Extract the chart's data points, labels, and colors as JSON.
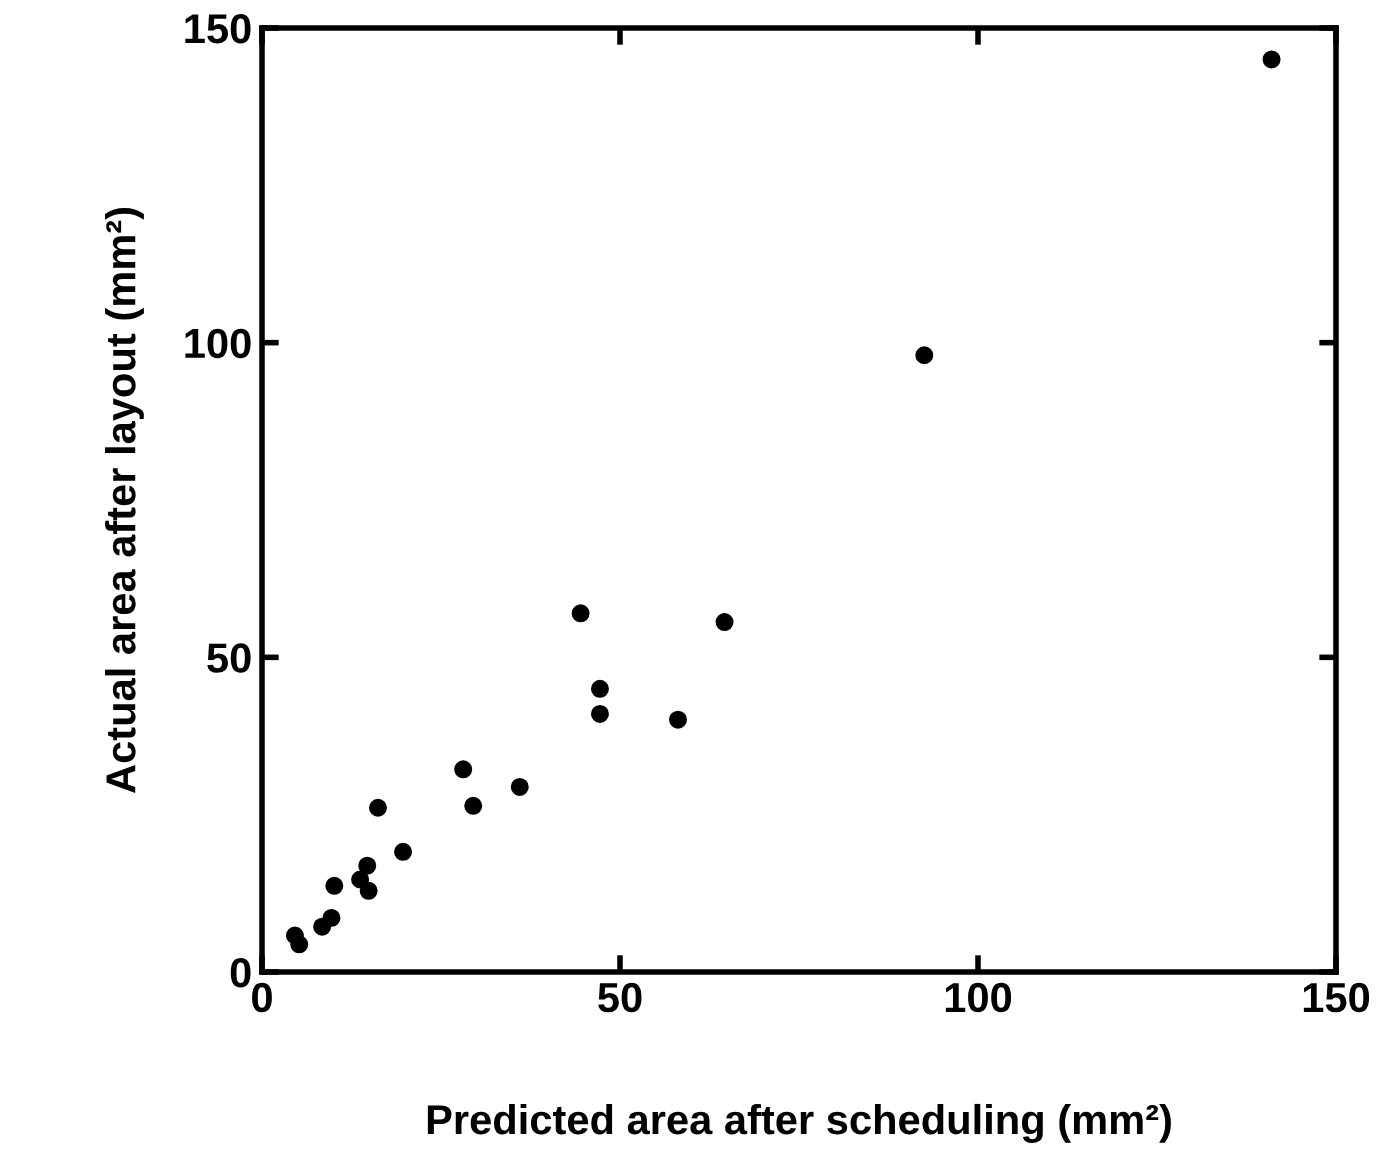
{
  "chart_data": {
    "type": "scatter",
    "xlabel": "Predicted area after scheduling (mm²)",
    "ylabel": "Actual area after layout (mm²)",
    "x": [
      141,
      92.5,
      44.5,
      64.6,
      47.2,
      47.2,
      58.1,
      28.1,
      29.5,
      36,
      16.2,
      19.7,
      10.1,
      14.7,
      13.7,
      14.9,
      9.7,
      8.4,
      4.6,
      5.2
    ],
    "values": [
      145,
      98,
      57,
      55.6,
      45,
      41,
      40.1,
      32.2,
      26.4,
      29.4,
      26.1,
      19.1,
      13.7,
      16.9,
      14.7,
      12.9,
      8.6,
      7.2,
      5.8,
      4.4
    ],
    "color": "#000000",
    "marker": "circle",
    "xlim": [
      0,
      150
    ],
    "ylim": [
      0,
      150
    ],
    "xticks": [
      0,
      50,
      100,
      150
    ],
    "yticks": [
      0,
      50,
      100,
      150
    ],
    "grid": false
  }
}
